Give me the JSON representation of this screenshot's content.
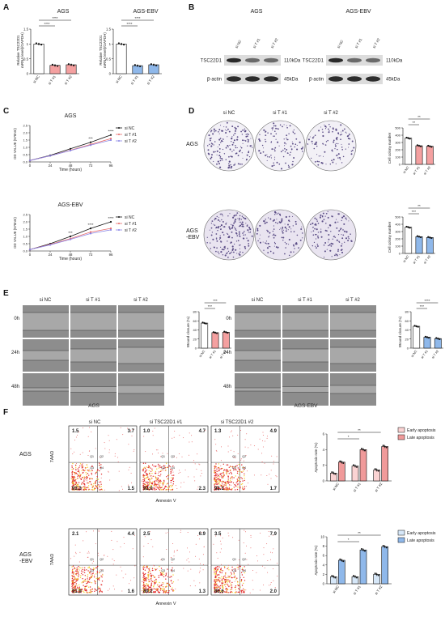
{
  "panels": {
    "A": "A",
    "B": "B",
    "C": "C",
    "D": "D",
    "E": "E",
    "F": "F"
  },
  "panel_a": {
    "ylabel": "Relative TSC22D1\nmRNA level(/GAPDH)",
    "sig": [
      "****",
      "****"
    ],
    "charts": [
      {
        "title": "AGS",
        "categories": [
          "si NC",
          "si T #1",
          "si T #2"
        ],
        "values": [
          1.0,
          0.28,
          0.3
        ],
        "colors": [
          "#ffffff",
          "#f4a0a0",
          "#f4a0a0"
        ],
        "ylim": [
          0,
          1.5
        ],
        "yticks": [
          0.0,
          0.5,
          1.0,
          1.5
        ]
      },
      {
        "title": "AGS-EBV",
        "categories": [
          "si NC",
          "si T #1",
          "si T #2"
        ],
        "values": [
          1.0,
          0.27,
          0.3
        ],
        "colors": [
          "#ffffff",
          "#8fb8ea",
          "#8fb8ea"
        ],
        "ylim": [
          0,
          1.5
        ],
        "yticks": [
          0.0,
          0.5,
          1.0,
          1.5
        ]
      }
    ]
  },
  "panel_b": {
    "blots": [
      {
        "title": "AGS",
        "lanes": [
          "si NC",
          "si T #1",
          "si T #2"
        ],
        "rows": [
          {
            "name": "TSC22D1",
            "kda": "110kDa"
          },
          {
            "name": "β-actin",
            "kda": "45kDa"
          }
        ]
      },
      {
        "title": "AGS-EBV",
        "lanes": [
          "si NC",
          "si T #1",
          "si T #2"
        ],
        "rows": [
          {
            "name": "TSC22D1",
            "kda": "110kDa"
          },
          {
            "name": "β-actin",
            "kda": "45kDa"
          }
        ]
      }
    ]
  },
  "panel_c": {
    "xlabel": "Time (hours)",
    "ylabel": "OD VALUE (570nm)",
    "charts": [
      {
        "title": "AGS",
        "x": [
          0,
          24,
          48,
          72,
          96
        ],
        "ylim": [
          0,
          2.5
        ],
        "yticks": [
          0.0,
          0.5,
          1.0,
          1.5,
          2.0,
          2.5
        ],
        "series": [
          {
            "name": "si NC",
            "values": [
              0.1,
              0.45,
              0.9,
              1.35,
              1.85
            ],
            "color": "#111111"
          },
          {
            "name": "si T #1",
            "values": [
              0.1,
              0.42,
              0.8,
              1.2,
              1.6
            ],
            "color": "#e86a6a"
          },
          {
            "name": "si T #2",
            "values": [
              0.1,
              0.42,
              0.78,
              1.15,
              1.5
            ],
            "color": "#8a86e6"
          }
        ],
        "sig": [
          {
            "x": 72,
            "label": "***"
          },
          {
            "x": 96,
            "label": "****"
          }
        ]
      },
      {
        "title": "AGS-EBV",
        "x": [
          0,
          24,
          48,
          72,
          96
        ],
        "ylim": [
          0,
          2.5
        ],
        "yticks": [
          0.0,
          0.5,
          1.0,
          1.5,
          2.0,
          2.5
        ],
        "series": [
          {
            "name": "si NC",
            "values": [
              0.1,
              0.5,
              1.0,
              1.55,
              2.0
            ],
            "color": "#111111"
          },
          {
            "name": "si T #1",
            "values": [
              0.1,
              0.45,
              0.85,
              1.3,
              1.55
            ],
            "color": "#e86a6a"
          },
          {
            "name": "si T #2",
            "values": [
              0.1,
              0.42,
              0.8,
              1.2,
              1.45
            ],
            "color": "#8a86e6"
          }
        ],
        "sig": [
          {
            "x": 48,
            "label": "***"
          },
          {
            "x": 72,
            "label": "****"
          },
          {
            "x": 96,
            "label": "****"
          }
        ]
      }
    ]
  },
  "panel_d": {
    "cols": [
      "si NC",
      "si T #1",
      "si T #2"
    ],
    "rows": [
      "AGS",
      "AGS\n-EBV"
    ],
    "ylabel": "Cell colony number",
    "charts": [
      {
        "categories": [
          "si NC",
          "si T #1",
          "si T #2"
        ],
        "values": [
          360,
          255,
          248
        ],
        "colors": [
          "#ffffff",
          "#f4a0a0",
          "#f4a0a0"
        ],
        "ylim": [
          0,
          500
        ],
        "yticks": [
          0,
          100,
          200,
          300,
          400,
          500
        ],
        "sig": [
          "**",
          "**"
        ]
      },
      {
        "categories": [
          "si NC",
          "si T #1",
          "si T #2"
        ],
        "values": [
          360,
          230,
          218
        ],
        "colors": [
          "#ffffff",
          "#8fb8ea",
          "#8fb8ea"
        ],
        "ylim": [
          0,
          500
        ],
        "yticks": [
          0,
          100,
          200,
          300,
          400,
          500
        ],
        "sig": [
          "***",
          "**"
        ]
      }
    ]
  },
  "panel_e": {
    "cols": [
      "si NC",
      "si T #1",
      "si T #2"
    ],
    "rows": [
      "0h",
      "24h",
      "48h"
    ],
    "groups": [
      "AGS",
      "AGS-EBV"
    ],
    "ylabel": "Wound closure (%)",
    "charts": [
      {
        "categories": [
          "si NC",
          "si T #1",
          "si T #2"
        ],
        "values": [
          55,
          34,
          35
        ],
        "colors": [
          "#ffffff",
          "#f4a0a0",
          "#f4a0a0"
        ],
        "ylim": [
          0,
          80
        ],
        "yticks": [
          0,
          20,
          40,
          60,
          80
        ],
        "sig": [
          "***",
          "***"
        ]
      },
      {
        "categories": [
          "si NC",
          "si T #1",
          "si T #2"
        ],
        "values": [
          48,
          24,
          21
        ],
        "colors": [
          "#ffffff",
          "#8fb8ea",
          "#8fb8ea"
        ],
        "ylim": [
          0,
          80
        ],
        "yticks": [
          0,
          20,
          40,
          60,
          80
        ],
        "sig": [
          "***",
          "****"
        ]
      }
    ]
  },
  "panel_f": {
    "cols": [
      "si NC",
      "si TSC22D1 #1",
      "si TSC22D1 #2"
    ],
    "rows": [
      "AGS",
      "AGS\n-EBV"
    ],
    "ylabel_y": "7AAD",
    "xlabel": "Annexin V",
    "quadrants": [
      [
        [
          "1.5",
          "3.7",
          "93.3",
          "1.5"
        ],
        [
          "1.0",
          "4.7",
          "92.0",
          "2.3"
        ],
        [
          "1.3",
          "4.9",
          "92.1",
          "1.7"
        ]
      ],
      [
        [
          "2.1",
          "4.4",
          "91.9",
          "1.6"
        ],
        [
          "2.5",
          "6.9",
          "89.2",
          "1.3"
        ],
        [
          "3.5",
          "7.9",
          "86.6",
          "2.0"
        ]
      ]
    ],
    "qlabels": [
      "Q1",
      "Q2",
      "Q3",
      "Q4"
    ],
    "bar_ylabel": "Apoptosis rate (%)",
    "charts": [
      {
        "categories": [
          "si NC",
          "si T #1",
          "si T #2"
        ],
        "early": [
          1.0,
          1.9,
          1.4
        ],
        "late": [
          2.4,
          4.0,
          4.4
        ],
        "legend": [
          "Early apoptosis",
          "Late apoptosis"
        ],
        "colors": [
          "#fbd3d3",
          "#f09a9a"
        ],
        "ylim": [
          0,
          6
        ],
        "yticks": [
          0,
          2,
          4,
          6
        ],
        "sig": [
          "*",
          "**"
        ]
      },
      {
        "categories": [
          "si NC",
          "si T #1",
          "si T #2"
        ],
        "early": [
          1.5,
          1.5,
          2.0
        ],
        "late": [
          5.0,
          7.2,
          7.9
        ],
        "legend": [
          "Early apoptosis",
          "Late apoptosis"
        ],
        "colors": [
          "#d6e7f8",
          "#8fb8ea"
        ],
        "ylim": [
          0,
          10
        ],
        "yticks": [
          0,
          2,
          4,
          6,
          8,
          10
        ],
        "sig": [
          "*",
          "**"
        ]
      }
    ]
  }
}
